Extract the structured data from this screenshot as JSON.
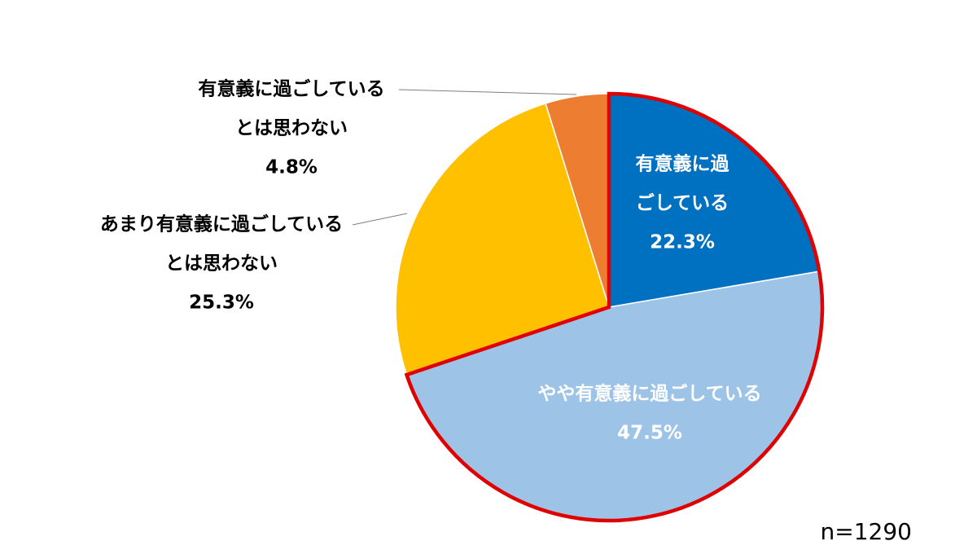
{
  "chart_data": {
    "type": "pie",
    "title": "",
    "start_angle_deg": 0,
    "direction": "clockwise",
    "slices": [
      {
        "label_lines": [
          "有意義に過",
          "ごしている"
        ],
        "label": "有意義に過ごしている",
        "pct_text": "22.3%",
        "value": 22.3,
        "color": "#0070C0",
        "label_color": "#ffffff",
        "label_inside": true,
        "highlight": true
      },
      {
        "label_lines": [
          "やや有意義に過ごしている"
        ],
        "label": "やや有意義に過ごしている",
        "pct_text": "47.5%",
        "value": 47.5,
        "color": "#9DC3E6",
        "label_color": "#ffffff",
        "label_inside": true,
        "highlight": true
      },
      {
        "label_lines": [
          "あまり有意義に過ごしている",
          "とは思わない"
        ],
        "label": "あまり有意義に過ごしているとは思わない",
        "pct_text": "25.3%",
        "value": 25.3,
        "color": "#FFC000",
        "label_color": "#000000",
        "label_inside": false,
        "highlight": false
      },
      {
        "label_lines": [
          "有意義に過ごしている",
          "とは思わない"
        ],
        "label": "有意義に過ごしているとは思わない",
        "pct_text": "4.8%",
        "value": 4.8,
        "color": "#ED7D31",
        "label_color": "#000000",
        "label_inside": false,
        "highlight": false
      }
    ],
    "highlight_color": "#E00000"
  },
  "note": "n=1290"
}
